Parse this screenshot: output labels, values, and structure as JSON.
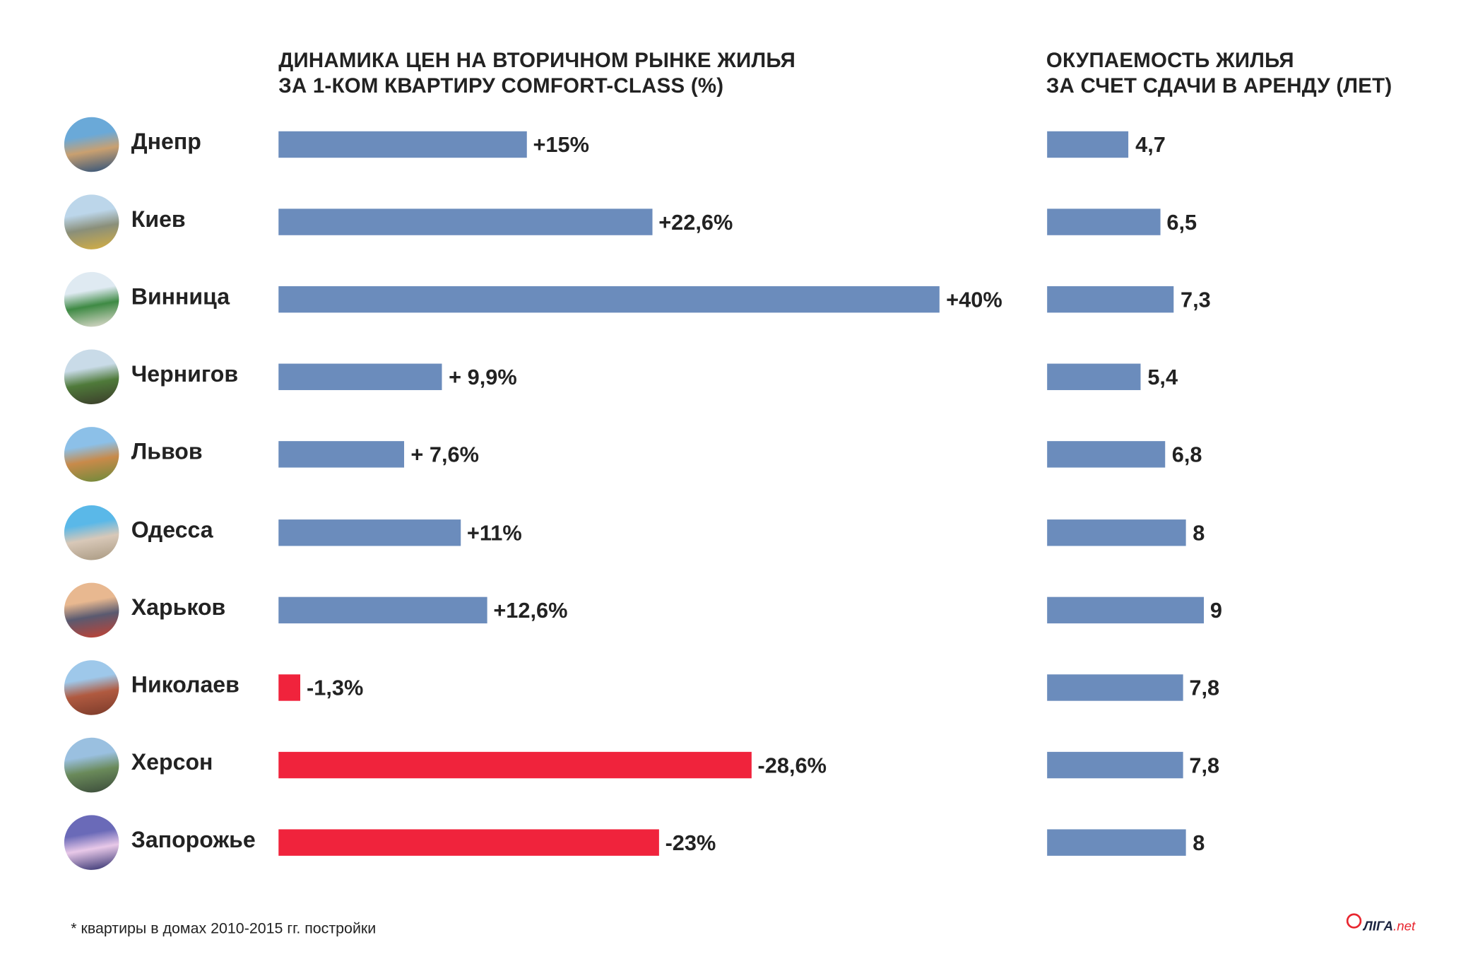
{
  "chart_data": [
    {
      "type": "bar",
      "orientation": "horizontal",
      "title": [
        "ДИНАМИКА ЦЕН НА ВТОРИЧНОМ РЫНКЕ ЖИЛЬЯ",
        "ЗА 1-КОМ КВАРТИРУ COMFORT-CLASS (%)"
      ],
      "categories": [
        "Днепр",
        "Киев",
        "Винница",
        "Чернигов",
        "Львов",
        "Одесса",
        "Харьков",
        "Николаев",
        "Херсон",
        "Запорожье"
      ],
      "values": [
        15,
        22.6,
        40,
        9.9,
        7.6,
        11,
        12.6,
        -1.3,
        -28.6,
        -23
      ],
      "data_labels": [
        "+15%",
        "+22,6%",
        "+40%",
        "+ 9,9%",
        "+ 7,6%",
        "+11%",
        "+12,6%",
        "-1,3%",
        "-28,6%",
        "-23%"
      ],
      "colors": {
        "positive": "#6b8cbc",
        "negative": "#f0233c"
      },
      "note": "negative values drawn as rightward red bars"
    },
    {
      "type": "bar",
      "orientation": "horizontal",
      "title": [
        "ОКУПАЕМОСТЬ ЖИЛЬЯ",
        "ЗА СЧЕТ СДАЧИ В АРЕНДУ (ЛЕТ)"
      ],
      "categories": [
        "Днепр",
        "Киев",
        "Винница",
        "Чернигов",
        "Львов",
        "Одесса",
        "Харьков",
        "Николаев",
        "Херсон",
        "Запорожье"
      ],
      "values": [
        4.7,
        6.5,
        7.3,
        5.4,
        6.8,
        8,
        9,
        7.8,
        7.8,
        8
      ],
      "data_labels": [
        "4,7",
        "6,5",
        "7,3",
        "5,4",
        "6,8",
        "8",
        "9",
        "7,8",
        "7,8",
        "8"
      ],
      "colors": {
        "bar": "#6b8cbc"
      }
    }
  ],
  "footnote": "* квартиры в домах 2010-2015 гг. постройки",
  "logo": {
    "text_main": "ЛIГА",
    "text_suffix": ".net"
  }
}
